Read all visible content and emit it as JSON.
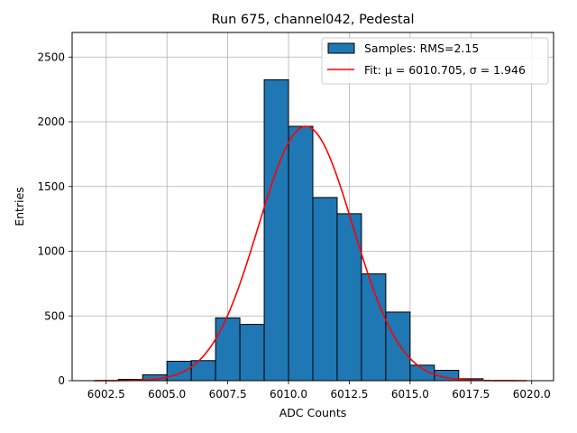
{
  "chart_data": {
    "type": "bar",
    "title": "Run 675, channel042, Pedestal",
    "xlabel": "ADC Counts",
    "ylabel": "Entries",
    "xlim": [
      6001.1,
      6020.9
    ],
    "ylim": [
      0,
      2690
    ],
    "xticks": [
      6002.5,
      6005.0,
      6007.5,
      6010.0,
      6012.5,
      6015.0,
      6017.5,
      6020.0
    ],
    "xtick_labels": [
      "6002.5",
      "6005.0",
      "6007.5",
      "6010.0",
      "6012.5",
      "6015.0",
      "6017.5",
      "6020.0"
    ],
    "yticks": [
      0,
      500,
      1000,
      1500,
      2000,
      2500
    ],
    "ytick_labels": [
      "0",
      "500",
      "1000",
      "1500",
      "2000",
      "2500"
    ],
    "grid": true,
    "legend_position": "top-right",
    "bins": [
      {
        "x0": 6003,
        "x1": 6004,
        "count": 10
      },
      {
        "x0": 6004,
        "x1": 6005,
        "count": 45
      },
      {
        "x0": 6005,
        "x1": 6006,
        "count": 150
      },
      {
        "x0": 6006,
        "x1": 6007,
        "count": 155
      },
      {
        "x0": 6007,
        "x1": 6008,
        "count": 485
      },
      {
        "x0": 6008,
        "x1": 6009,
        "count": 435
      },
      {
        "x0": 6009,
        "x1": 6010,
        "count": 2325
      },
      {
        "x0": 6010,
        "x1": 6011,
        "count": 1965
      },
      {
        "x0": 6011,
        "x1": 6012,
        "count": 1415
      },
      {
        "x0": 6012,
        "x1": 6013,
        "count": 1290
      },
      {
        "x0": 6013,
        "x1": 6014,
        "count": 825
      },
      {
        "x0": 6014,
        "x1": 6015,
        "count": 530
      },
      {
        "x0": 6015,
        "x1": 6016,
        "count": 120
      },
      {
        "x0": 6016,
        "x1": 6017,
        "count": 80
      },
      {
        "x0": 6017,
        "x1": 6018,
        "count": 15
      }
    ],
    "fit": {
      "mu": 6010.705,
      "sigma": 1.946,
      "amplitude": 1965,
      "x_range": [
        6002.0,
        6019.8
      ]
    },
    "series": [
      {
        "name": "Samples: RMS=2.15",
        "kind": "histogram",
        "color": "#1f77b4",
        "edgecolor": "#000000"
      },
      {
        "name": "Fit: μ = 6010.705, σ = 1.946",
        "kind": "line",
        "color": "#ff0000"
      }
    ]
  }
}
